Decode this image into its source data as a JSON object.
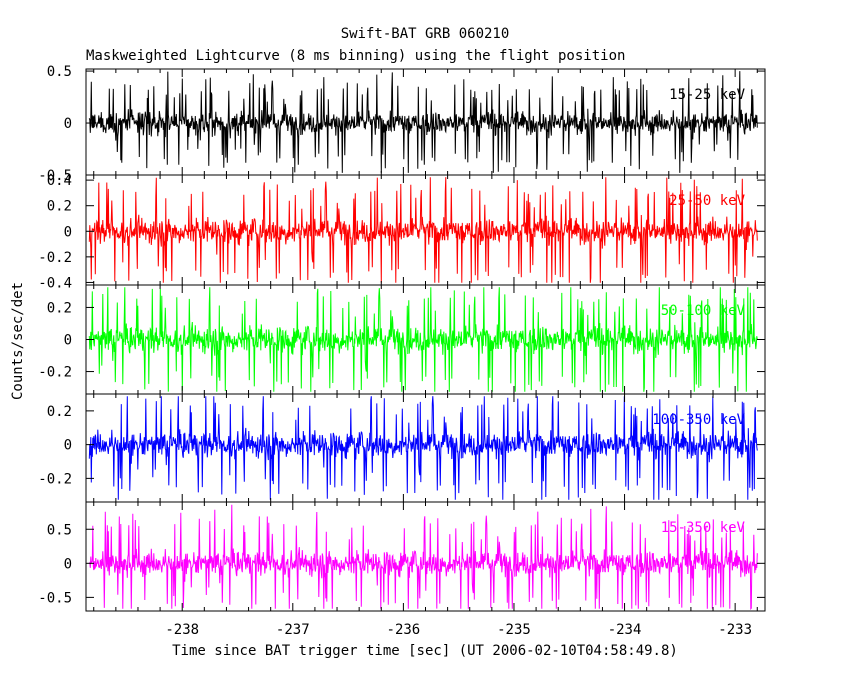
{
  "chart_data": {
    "type": "line",
    "title": "Swift-BAT GRB 060210",
    "subtitle": "Maskweighted Lightcurve (8 ms binning) using the flight position",
    "xlabel": "Time since BAT trigger time [sec] (UT 2006-02-10T04:58:49.8)",
    "ylabel": "Counts/sec/det",
    "xlim": [
      -238.87,
      -232.73
    ],
    "x_ticks": [
      -238,
      -237,
      -236,
      -235,
      -234,
      -233
    ],
    "x_tick_labels": [
      "-238",
      "-237",
      "-236",
      "-235",
      "-234",
      "-233"
    ],
    "data_x_range": [
      -238.84,
      -232.8
    ],
    "series": [
      {
        "name": "15-25 keV",
        "color": "#000000",
        "ylim": [
          -0.5,
          0.52
        ],
        "noise_amp": 0.14,
        "spike_amp": 0.42,
        "y_ticks": [
          -0.5,
          0,
          0.5
        ],
        "y_tick_labels": [
          "-0.5",
          "0",
          "0.5"
        ]
      },
      {
        "name": "25-50 keV",
        "color": "#ff0000",
        "ylim": [
          -0.42,
          0.44
        ],
        "noise_amp": 0.13,
        "spike_amp": 0.4,
        "y_ticks": [
          -0.4,
          -0.2,
          0,
          0.2,
          0.4
        ],
        "y_tick_labels": [
          "-0.4",
          "-0.2",
          "0",
          "0.2",
          "0.4"
        ]
      },
      {
        "name": "50-100 keV",
        "color": "#00ff00",
        "ylim": [
          -0.34,
          0.34
        ],
        "noise_amp": 0.11,
        "spike_amp": 0.33,
        "y_ticks": [
          -0.2,
          0,
          0.2
        ],
        "y_tick_labels": [
          "-0.2",
          "0",
          "0.2"
        ]
      },
      {
        "name": "100-350 keV",
        "color": "#0000ff",
        "ylim": [
          -0.34,
          0.3
        ],
        "noise_amp": 0.1,
        "spike_amp": 0.3,
        "y_ticks": [
          -0.2,
          0,
          0.2
        ],
        "y_tick_labels": [
          "-0.2",
          "0",
          "0.2"
        ]
      },
      {
        "name": "15-350 keV",
        "color": "#ff00ff",
        "ylim": [
          -0.7,
          0.9
        ],
        "noise_amp": 0.24,
        "spike_amp": 0.72,
        "y_ticks": [
          -0.5,
          0,
          0.5
        ],
        "y_tick_labels": [
          "-0.5",
          "0",
          "0.5"
        ]
      }
    ]
  }
}
